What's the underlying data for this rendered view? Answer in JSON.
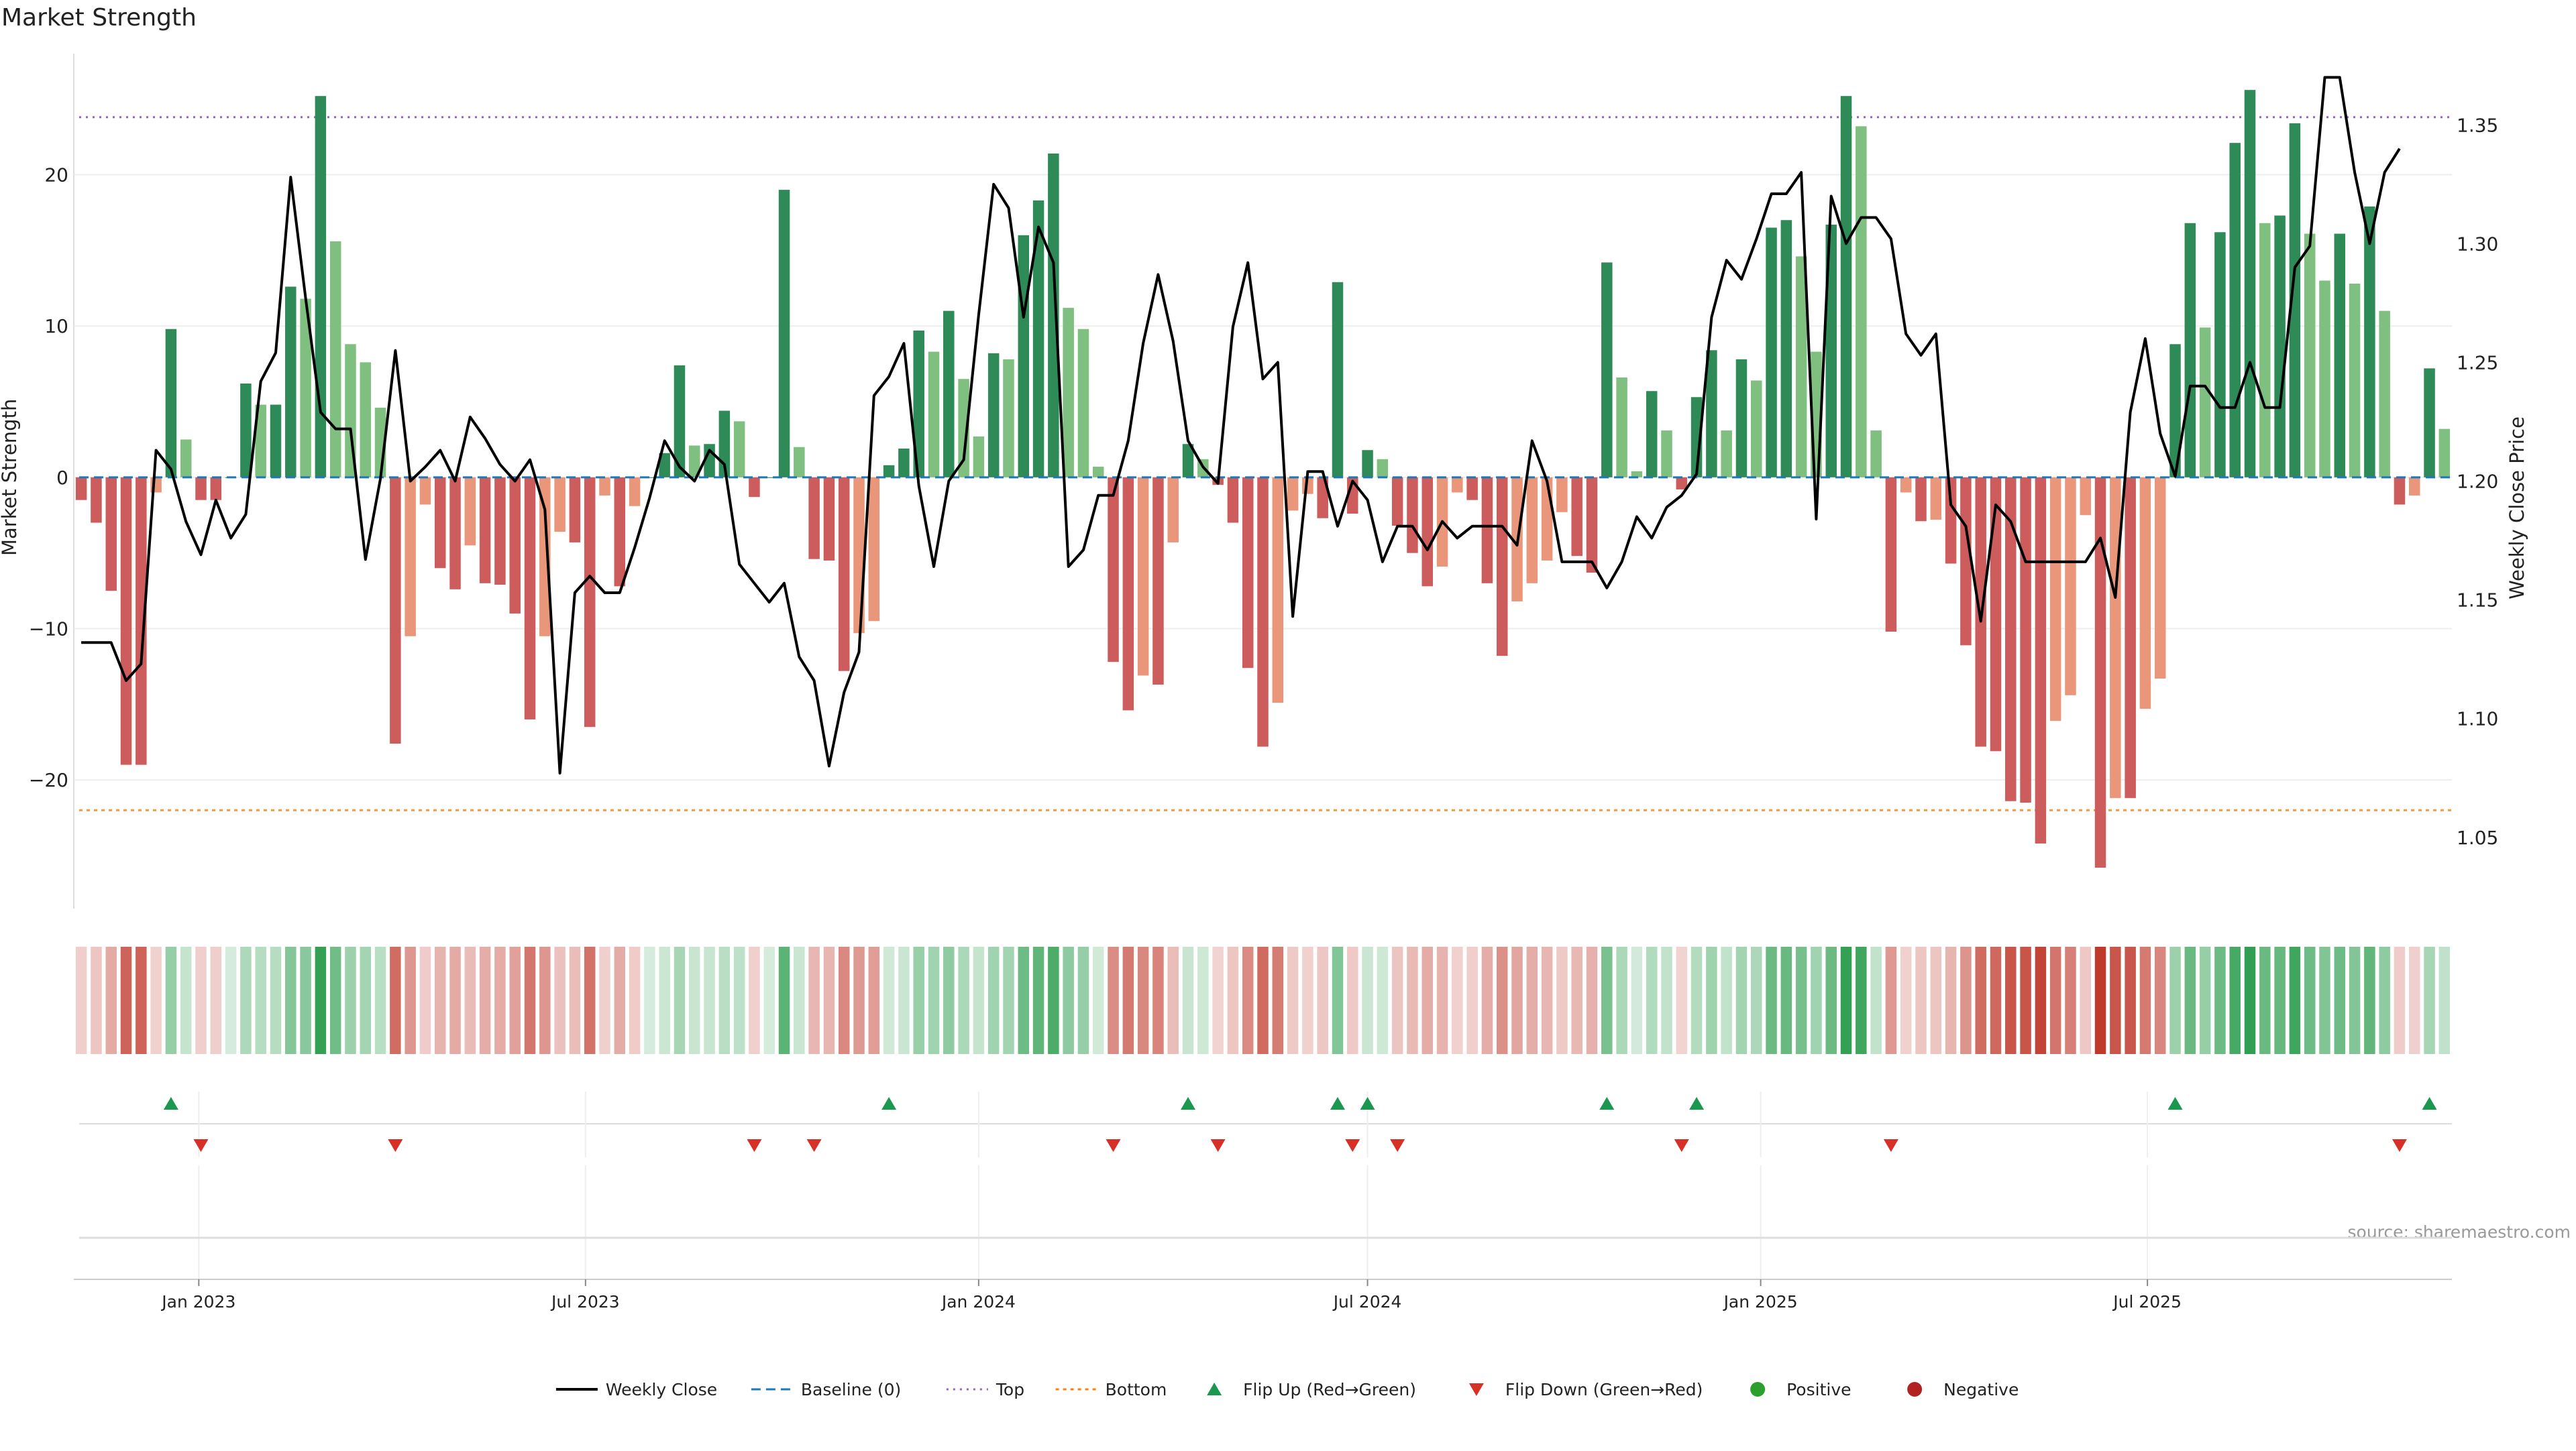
{
  "chart_data": {
    "type": "bar",
    "title": "Market Strength",
    "ylabel": "Market Strength",
    "y2label": "Weekly Close Price",
    "source": "source: sharemaestro.com",
    "ylim": [
      -28.5,
      28
    ],
    "y2lim": [
      1.02,
      1.38
    ],
    "yticks": [
      -20,
      -10,
      0,
      10,
      20
    ],
    "y2ticks": [
      1.05,
      1.1,
      1.15,
      1.2,
      1.25,
      1.3,
      1.35
    ],
    "top_threshold": 23.8,
    "bottom_threshold": -22,
    "x_tick_labels": [
      "Jan 2023",
      "Jul 2023",
      "Jan 2024",
      "Jul 2024",
      "Jan 2025",
      "Jul 2025"
    ],
    "grid": true,
    "legend_position": "bottom-center",
    "legend": [
      {
        "key": "close",
        "label": "Weekly Close"
      },
      {
        "key": "baseline",
        "label": "Baseline (0)"
      },
      {
        "key": "top",
        "label": "Top"
      },
      {
        "key": "bottom",
        "label": "Bottom"
      },
      {
        "key": "flipup",
        "label": "Flip Up (Red→Green)"
      },
      {
        "key": "flipdown",
        "label": "Flip Down (Green→Red)"
      },
      {
        "key": "positive",
        "label": "Positive"
      },
      {
        "key": "negative",
        "label": "Negative"
      }
    ],
    "colors": {
      "pos_strong": "#2e8b57",
      "pos_weak": "#7fbf7f",
      "neg_strong": "#cd5c5c",
      "neg_weak": "#e9967a",
      "line": "#000000",
      "baseline": "#1f77b4",
      "top": "#9467bd",
      "bottom": "#ff7f0e",
      "flip_up": "#1a9850",
      "flip_down": "#d73027",
      "positive_dot": "#2ca02c",
      "negative_dot": "#b22222",
      "heat_pos": "#2e9e4f",
      "heat_neg": "#c0392b"
    },
    "weeks": [
      "2022-11-07",
      "2022-11-14",
      "2022-11-21",
      "2022-11-28",
      "2022-12-05",
      "2022-12-12",
      "2022-12-19",
      "2022-12-26",
      "2023-01-02",
      "2023-01-09",
      "2023-01-16",
      "2023-01-23",
      "2023-01-30",
      "2023-02-06",
      "2023-02-13",
      "2023-02-20",
      "2023-02-27",
      "2023-03-06",
      "2023-03-13",
      "2023-03-20",
      "2023-03-27",
      "2023-04-03",
      "2023-04-10",
      "2023-04-17",
      "2023-04-24",
      "2023-05-01",
      "2023-05-08",
      "2023-05-15",
      "2023-05-22",
      "2023-05-29",
      "2023-06-05",
      "2023-06-12",
      "2023-06-19",
      "2023-06-26",
      "2023-07-03",
      "2023-07-10",
      "2023-07-17",
      "2023-07-24",
      "2023-07-31",
      "2023-08-07",
      "2023-08-14",
      "2023-08-21",
      "2023-08-28",
      "2023-09-04",
      "2023-09-11",
      "2023-09-18",
      "2023-09-25",
      "2023-10-02",
      "2023-10-09",
      "2023-10-16",
      "2023-10-23",
      "2023-10-30",
      "2023-11-06",
      "2023-11-13",
      "2023-11-20",
      "2023-11-27",
      "2023-12-04",
      "2023-12-11",
      "2023-12-18",
      "2023-12-25",
      "2024-01-01",
      "2024-01-08",
      "2024-01-15",
      "2024-01-22",
      "2024-01-29",
      "2024-02-05",
      "2024-02-12",
      "2024-02-19",
      "2024-02-26",
      "2024-03-04",
      "2024-03-11",
      "2024-03-18",
      "2024-03-25",
      "2024-04-01",
      "2024-04-08",
      "2024-04-15",
      "2024-04-22",
      "2024-04-29",
      "2024-05-06",
      "2024-05-13",
      "2024-05-20",
      "2024-05-27",
      "2024-06-03",
      "2024-06-10",
      "2024-06-17",
      "2024-06-24",
      "2024-07-01",
      "2024-07-08",
      "2024-07-15",
      "2024-07-22",
      "2024-07-29",
      "2024-08-05",
      "2024-08-12",
      "2024-08-19",
      "2024-08-26",
      "2024-09-02",
      "2024-09-09",
      "2024-09-16",
      "2024-09-23",
      "2024-09-30",
      "2024-10-07",
      "2024-10-14",
      "2024-10-21",
      "2024-10-28",
      "2024-11-04",
      "2024-11-11",
      "2024-11-18",
      "2024-11-25",
      "2024-12-02",
      "2024-12-09",
      "2024-12-16",
      "2024-12-23",
      "2024-12-30",
      "2025-01-06",
      "2025-01-13",
      "2025-01-20",
      "2025-01-27",
      "2025-02-03",
      "2025-02-10",
      "2025-02-17",
      "2025-02-24",
      "2025-03-03",
      "2025-03-10",
      "2025-03-17",
      "2025-03-24",
      "2025-03-31",
      "2025-04-07",
      "2025-04-14",
      "2025-04-21",
      "2025-04-28",
      "2025-05-05",
      "2025-05-12",
      "2025-05-19",
      "2025-05-26",
      "2025-06-02",
      "2025-06-09",
      "2025-06-16",
      "2025-06-23",
      "2025-06-30",
      "2025-07-07",
      "2025-07-14",
      "2025-07-21",
      "2025-07-28",
      "2025-08-04",
      "2025-08-11",
      "2025-08-18",
      "2025-08-25",
      "2025-09-01",
      "2025-09-08",
      "2025-09-15",
      "2025-09-22",
      "2025-09-29",
      "2025-10-06",
      "2025-10-13",
      "2025-10-20",
      "2025-10-27"
    ],
    "strength": [
      -1.5,
      -3,
      -7.5,
      -19,
      -19,
      -1,
      9.8,
      2.5,
      -1.5,
      -1.5,
      0,
      6.2,
      4.8,
      4.8,
      12.6,
      11.8,
      25.2,
      15.6,
      8.8,
      7.6,
      4.6,
      -17.6,
      -10.5,
      -1.8,
      -6,
      -7.4,
      -4.5,
      -7,
      -7.1,
      -9,
      -16,
      -10.5,
      -3.6,
      -4.3,
      -16.5,
      -1.2,
      -7.2,
      -1.9,
      0,
      1.6,
      7.4,
      2.1,
      2.2,
      4.4,
      3.7,
      -1.3,
      0,
      19,
      2,
      -5.4,
      -5.5,
      -12.8,
      -10.3,
      -9.5,
      0.8,
      1.9,
      9.7,
      8.3,
      11.0,
      6.5,
      2.7,
      8.2,
      7.8,
      16,
      18.3,
      21.4,
      11.2,
      9.8,
      0.7,
      -12.2,
      -15.4,
      -13.1,
      -13.7,
      -4.3,
      2.2,
      1.2,
      -0.5,
      -3,
      -12.6,
      -17.8,
      -14.9,
      -2.2,
      -1.1,
      -2.7,
      12.9,
      -2.4,
      1.8,
      1.2,
      -3.2,
      -5,
      -7.2,
      -5.9,
      -1,
      -1.5,
      -7,
      -11.8,
      -8.2,
      -7,
      -5.5,
      -2.3,
      -5.2,
      -6.3,
      14.2,
      6.6,
      0.4,
      5.7,
      3.1,
      -0.8,
      5.3,
      8.4,
      3.1,
      7.8,
      6.4,
      16.5,
      17,
      14.6,
      8.3,
      16.7,
      25.2,
      23.2,
      3.1,
      -10.2,
      -1,
      -2.9,
      -2.8,
      -5.7,
      -11.1,
      -17.8,
      -18.1,
      -21.4,
      -21.5,
      -24.2,
      -16.1,
      -14.4,
      -2.5,
      -25.8,
      -21.2,
      -21.2,
      -15.3,
      -13.3,
      8.8,
      16.8,
      9.9,
      16.2,
      22.1,
      25.6,
      16.8,
      17.3,
      23.4,
      16.1,
      13,
      16.1,
      12.8,
      17.9,
      11,
      -1.8,
      -1.2,
      7.2,
      3.2
    ],
    "close": [
      1.132,
      1.132,
      1.132,
      1.116,
      1.123,
      1.213,
      1.205,
      1.183,
      1.169,
      1.192,
      1.176,
      1.186,
      1.242,
      1.254,
      1.328,
      1.277,
      1.229,
      1.222,
      1.222,
      1.167,
      1.201,
      1.255,
      1.2,
      1.206,
      1.213,
      1.2,
      1.227,
      1.218,
      1.207,
      1.2,
      1.209,
      1.188,
      1.077,
      1.153,
      1.16,
      1.153,
      1.153,
      1.172,
      1.193,
      1.217,
      1.206,
      1.2,
      1.213,
      1.207,
      1.165,
      1.157,
      1.149,
      1.157,
      1.126,
      1.116,
      1.08,
      1.111,
      1.128,
      1.236,
      1.244,
      1.258,
      1.198,
      1.164,
      1.2,
      1.209,
      1.27,
      1.325,
      1.315,
      1.269,
      1.307,
      1.292,
      1.164,
      1.171,
      1.194,
      1.194,
      1.217,
      1.258,
      1.287,
      1.259,
      1.217,
      1.206,
      1.199,
      1.265,
      1.292,
      1.243,
      1.25,
      1.143,
      1.204,
      1.204,
      1.181,
      1.2,
      1.192,
      1.166,
      1.181,
      1.181,
      1.171,
      1.183,
      1.176,
      1.181,
      1.181,
      1.181,
      1.173,
      1.217,
      1.2,
      1.166,
      1.166,
      1.166,
      1.155,
      1.166,
      1.185,
      1.176,
      1.189,
      1.194,
      1.203,
      1.269,
      1.293,
      1.285,
      1.302,
      1.321,
      1.321,
      1.33,
      1.184,
      1.32,
      1.3,
      1.311,
      1.311,
      1.302,
      1.262,
      1.253,
      1.262,
      1.19,
      1.181,
      1.141,
      1.19,
      1.183,
      1.166,
      1.166,
      1.166,
      1.166,
      1.166,
      1.176,
      1.151,
      1.229,
      1.26,
      1.22,
      1.202,
      1.24,
      1.24,
      1.231,
      1.231,
      1.25,
      1.231,
      1.231,
      1.29,
      1.299,
      1.37,
      1.37,
      1.33,
      1.3,
      1.33,
      1.34
    ]
  }
}
